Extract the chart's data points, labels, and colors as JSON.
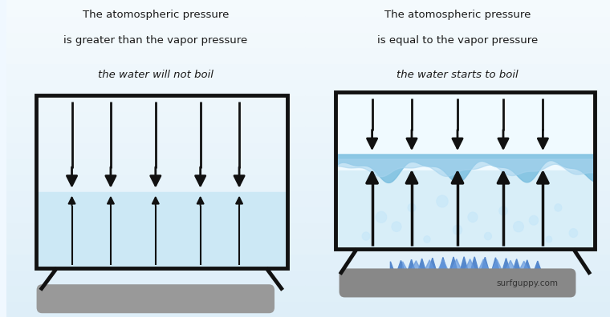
{
  "bg_color": "#f0f8ff",
  "water_color_left": "#cce8f5",
  "water_color_right": "#e8f4fc",
  "title1_line1": "The atomospheric pressure",
  "title1_line2": "is greater than the vapor pressure",
  "subtitle1": "the water will not boil",
  "title2_line1": "The atomospheric pressure",
  "title2_line2": "is equal to the vapor pressure",
  "subtitle2": "the water starts to boil",
  "watermark": "surfguppy.com",
  "arrow_color": "#111111",
  "tank_color": "#111111",
  "stand_color": "#111111",
  "base_color_left": "#999999",
  "base_color_right": "#888888",
  "flame_color": "#4477cc",
  "flame_color2": "#3366bb",
  "wave_color": "#88c8e8",
  "bubble_color": "#b0d8f0",
  "tank_lw": 3.5,
  "stand_lw": 3.5
}
